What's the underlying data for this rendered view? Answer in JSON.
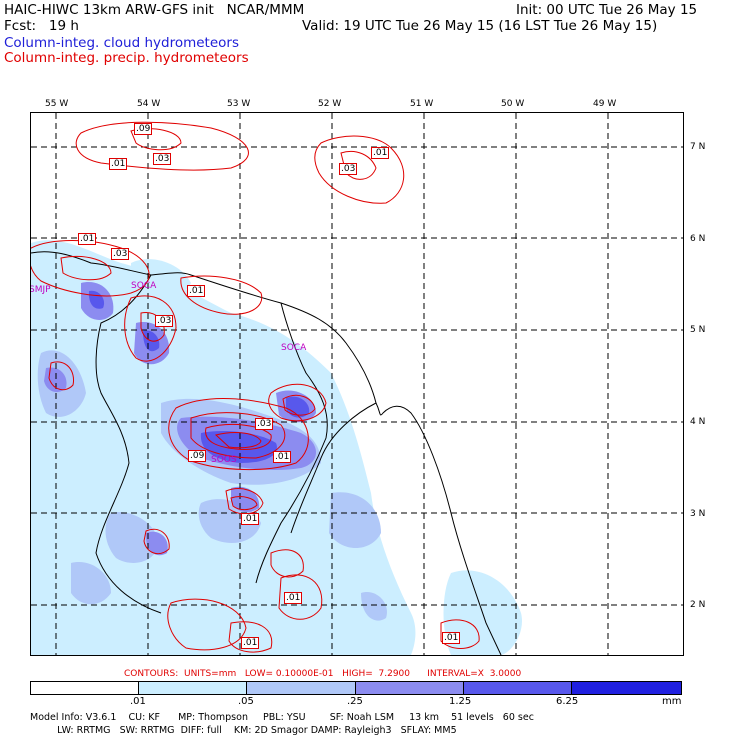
{
  "header": {
    "line1_left": "HAIC-HIWC 13km ARW-GFS init   NCAR/MMM",
    "line1_right": "Init: 00 UTC Tue 26 May 15",
    "line2_left": "Fcst:   19 h",
    "line2_right": "Valid: 19 UTC Tue 26 May 15 (16 LST Tue 26 May 15)",
    "line3": "Column-integ. cloud hydrometeors",
    "line4": "Column-integ. precip. hydrometeors"
  },
  "colors": {
    "cloud_legend": "#2020d8",
    "precip_legend": "#e00000",
    "shade_levels": [
      "#ffffff",
      "#cceeff",
      "#b0c8f8",
      "#8c8cf0",
      "#5858ec",
      "#2020e0"
    ]
  },
  "map": {
    "lon_labels": [
      "55 W",
      "54 W",
      "53 W",
      "52 W",
      "51 W",
      "50 W",
      "49 W"
    ],
    "lat_labels": [
      "7 N",
      "6 N",
      "5 N",
      "4 N",
      "3 N",
      "2 N"
    ],
    "station_labels": [
      "SMJP",
      "SOCA",
      "SOCA",
      "SOOS"
    ],
    "contour_labels": [
      ".09",
      ".01",
      ".03",
      ".01",
      ".03",
      ".01",
      ".03",
      ".01",
      ".03",
      ".03",
      ".09",
      ".01",
      ".01",
      ".01",
      ".01",
      ".01"
    ]
  },
  "legend": {
    "caption_contours": "CONTOURS:  UNITS=mm   LOW= 0.10000E-01   HIGH=  7.2900      INTERVAL=X  3.0000",
    "tick_labels": [
      ".01",
      ".05",
      ".25",
      "1.25",
      "6.25"
    ],
    "units": "mm"
  },
  "footer": {
    "line1": "Model Info: V3.6.1    CU: KF      MP: Thompson     PBL: YSU        SF: Noah LSM     13 km    51 levels   60 sec",
    "line2": "         LW: RRTMG   SW: RRTMG  DIFF: full    KM: 2D Smagor DAMP: Rayleigh3   SFLAY: MM5"
  }
}
